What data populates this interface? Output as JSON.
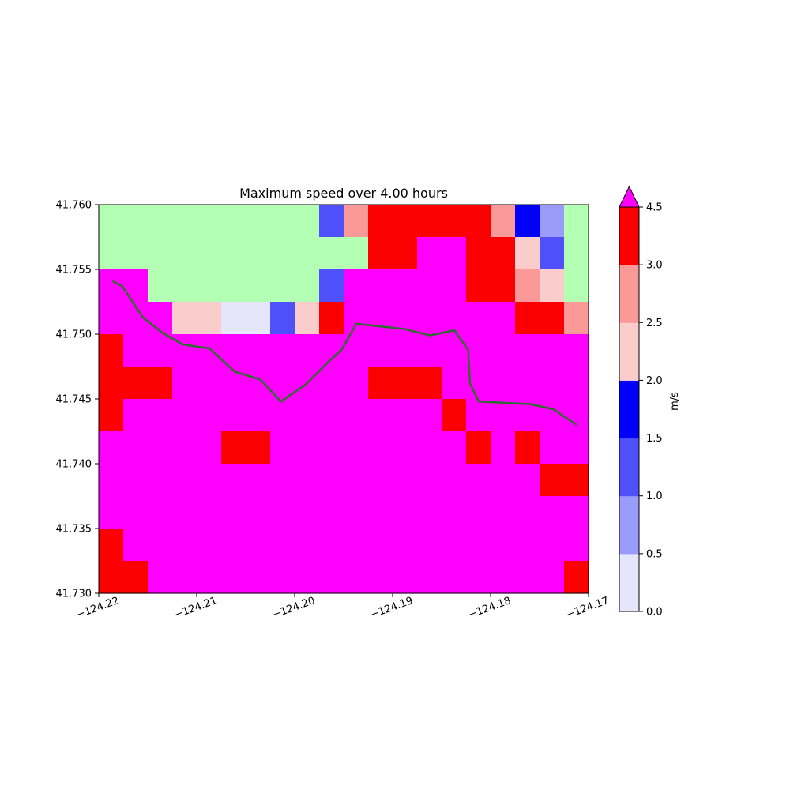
{
  "chart_data": {
    "type": "heatmap",
    "title": "Maximum speed over 4.00 hours",
    "xlabel": "",
    "ylabel": "",
    "x_ticks": [
      "−124.22",
      "−124.21",
      "−124.20",
      "−124.19",
      "−124.18",
      "−124.17"
    ],
    "y_ticks": [
      "41.730",
      "41.735",
      "41.740",
      "41.745",
      "41.750",
      "41.755",
      "41.760"
    ],
    "xlim": [
      -124.22,
      -124.17
    ],
    "ylim": [
      41.73,
      41.76
    ],
    "grid": false,
    "legend": {
      "colorbar_label": "m/s",
      "levels": [
        0.0,
        0.5,
        1.0,
        1.5,
        2.0,
        2.5,
        3.0,
        4.5
      ],
      "tick_labels": [
        "0.0",
        "0.5",
        "1.0",
        "1.5",
        "2.0",
        "2.5",
        "3.0",
        "4.5"
      ],
      "colors": [
        "#e6e6fa",
        "#9b9bfb",
        "#5050fb",
        "#0000fb",
        "#fbcccc",
        "#fb9999",
        "#fb0000"
      ],
      "over_color": "#ff00ff",
      "extend": "max"
    },
    "cell_color_legend": {
      "0": "#b3ffb3",
      "1": "#e6e6fa",
      "2": "#9b9bfb",
      "3": "#5050fb",
      "4": "#0000fb",
      "5": "#fbcccc",
      "6": "#fb9999",
      "7": "#fb0000",
      "8": "#ff00ff"
    },
    "grid_columns": 20,
    "grid_rows_top_to_bottom": [
      "00000000000000000000",
      "00000000000000000000",
      "00000000000000000000",
      "00000000000000000000",
      "00000000000000000000",
      "00000000000000000000",
      "00000000000000000000",
      "00000000000000000000",
      "00000000000000000000",
      "00000000000000000000",
      "00000000000000000000",
      "00000000000000000000",
      "00000000000000000000",
      "00000000000000000000",
      "00000000000000000000",
      "00000000000000000000",
      "00000000000000000000",
      "00000000000000000000",
      "00000000000000000000",
      "00000000000000000000",
      "00000000000000000000",
      "00000000000000000000",
      "00000000000000000000",
      "00000000000000000000"
    ],
    "speed_grid_rows_top_to_bottom": [
      "00000000036777776430",
      "00000000000000000000",
      "00000000000000000000",
      "00000000000000000000",
      "00000000000000000000",
      "00000000000000000000",
      "00000000000000000000",
      "00000000000000000000",
      "00000000000000000000",
      "00000000000000000000",
      "00000000000000000000",
      "00000000000000000000"
    ],
    "cells_rows_top_to_bottom": [
      "00000000036777776420",
      "00000000000778877530",
      "88000000038888877650",
      "88855113578888888776",
      "78888888888888888888",
      "77788888888777888888",
      "78888888888888788888",
      "88888778888888878788",
      "88888888888888888877",
      "88888888888888888888",
      "78888888888888888888",
      "77888888888888888887"
    ],
    "coastline": [
      [
        -124.2186,
        41.7541
      ],
      [
        -124.2176,
        41.7537
      ],
      [
        -124.2155,
        41.7513
      ],
      [
        -124.2135,
        41.7501
      ],
      [
        -124.2114,
        41.7492
      ],
      [
        -124.2087,
        41.7489
      ],
      [
        -124.2061,
        41.7471
      ],
      [
        -124.2035,
        41.7465
      ],
      [
        -124.2014,
        41.7448
      ],
      [
        -124.1989,
        41.7461
      ],
      [
        -124.1965,
        41.7479
      ],
      [
        -124.1952,
        41.7488
      ],
      [
        -124.1937,
        41.7508
      ],
      [
        -124.1888,
        41.7504
      ],
      [
        -124.1862,
        41.7499
      ],
      [
        -124.1837,
        41.7503
      ],
      [
        -124.1823,
        41.7488
      ],
      [
        -124.1821,
        41.7462
      ],
      [
        -124.1812,
        41.7448
      ],
      [
        -124.1759,
        41.7446
      ],
      [
        -124.1736,
        41.7442
      ],
      [
        -124.173,
        41.7439
      ],
      [
        -124.1712,
        41.743
      ]
    ],
    "coastline_color": "#2f6b2f"
  }
}
